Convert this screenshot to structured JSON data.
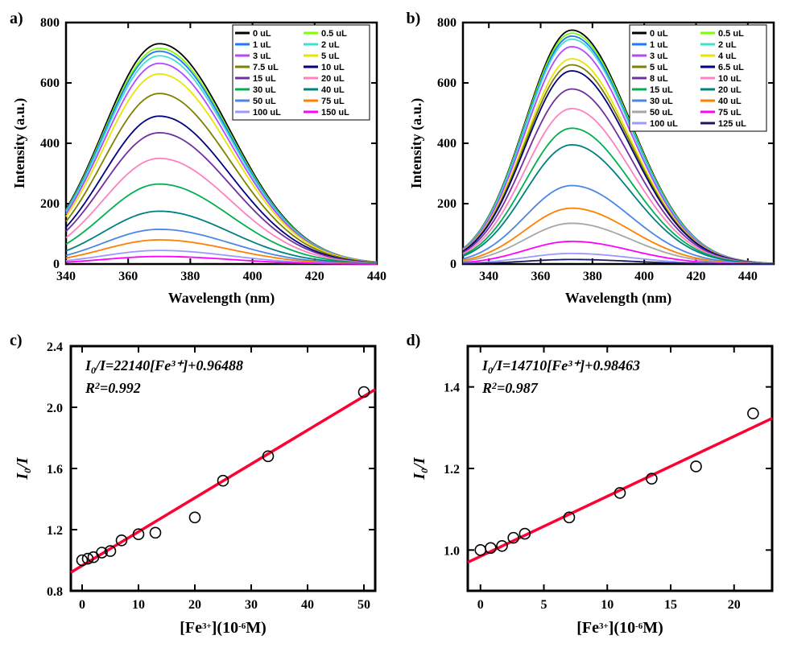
{
  "panel_a": {
    "label": "a)",
    "type": "line-spectra",
    "xlabel": "Wavelength (nm)",
    "ylabel": "Intensity (a.u.)",
    "xlim": [
      340,
      440
    ],
    "ylim": [
      0,
      800
    ],
    "xticks": [
      340,
      360,
      380,
      400,
      420,
      440
    ],
    "yticks": [
      0,
      200,
      400,
      600,
      800
    ],
    "label_fontsize": 18,
    "tick_fontsize": 16,
    "border_width": 2.5,
    "line_width": 1.8,
    "peak_x": 370,
    "series": [
      {
        "label": "0 uL",
        "color": "#000000",
        "peak": 730
      },
      {
        "label": "0.5 uL",
        "color": "#7fff00",
        "peak": 715
      },
      {
        "label": "1 uL",
        "color": "#1f77ff",
        "peak": 705
      },
      {
        "label": "2 uL",
        "color": "#40e0d0",
        "peak": 690
      },
      {
        "label": "3 uL",
        "color": "#b547ff",
        "peak": 665
      },
      {
        "label": "5 uL",
        "color": "#e6e600",
        "peak": 630
      },
      {
        "label": "7.5 uL",
        "color": "#808000",
        "peak": 565
      },
      {
        "label": "10 uL",
        "color": "#000080",
        "peak": 490
      },
      {
        "label": "15 uL",
        "color": "#7030a0",
        "peak": 435
      },
      {
        "label": "20 uL",
        "color": "#ff80c0",
        "peak": 350
      },
      {
        "label": "30 uL",
        "color": "#00b050",
        "peak": 265
      },
      {
        "label": "40 uL",
        "color": "#008080",
        "peak": 175
      },
      {
        "label": "50 uL",
        "color": "#4a86e8",
        "peak": 115
      },
      {
        "label": "75 uL",
        "color": "#ff8000",
        "peak": 80
      },
      {
        "label": "100 uL",
        "color": "#9999ff",
        "peak": 45
      },
      {
        "label": "150 uL",
        "color": "#ff00ff",
        "peak": 25
      }
    ]
  },
  "panel_b": {
    "label": "b)",
    "type": "line-spectra",
    "xlabel": "Wavelength (nm)",
    "ylabel": "Intensity (a.u.)",
    "xlim": [
      330,
      450
    ],
    "ylim": [
      0,
      800
    ],
    "xticks": [
      340,
      360,
      380,
      400,
      420,
      440
    ],
    "yticks": [
      0,
      200,
      400,
      600,
      800
    ],
    "label_fontsize": 18,
    "tick_fontsize": 16,
    "border_width": 2.5,
    "line_width": 1.8,
    "peak_x": 372,
    "series": [
      {
        "label": "0 uL",
        "color": "#000000",
        "peak": 775
      },
      {
        "label": "0.5 uL",
        "color": "#7fff00",
        "peak": 765
      },
      {
        "label": "1 uL",
        "color": "#1f77ff",
        "peak": 755
      },
      {
        "label": "2 uL",
        "color": "#40e0d0",
        "peak": 745
      },
      {
        "label": "3 uL",
        "color": "#b547ff",
        "peak": 720
      },
      {
        "label": "4 uL",
        "color": "#e6e600",
        "peak": 680
      },
      {
        "label": "5 uL",
        "color": "#808000",
        "peak": 660
      },
      {
        "label": "6.5 uL",
        "color": "#000080",
        "peak": 640
      },
      {
        "label": "8 uL",
        "color": "#7030a0",
        "peak": 580
      },
      {
        "label": "10 uL",
        "color": "#ff80c0",
        "peak": 515
      },
      {
        "label": "15 uL",
        "color": "#00b050",
        "peak": 450
      },
      {
        "label": "20 uL",
        "color": "#008080",
        "peak": 395
      },
      {
        "label": "30 uL",
        "color": "#4a86e8",
        "peak": 260
      },
      {
        "label": "40 uL",
        "color": "#ff8000",
        "peak": 185
      },
      {
        "label": "50 uL",
        "color": "#a6a6a6",
        "peak": 135
      },
      {
        "label": "75 uL",
        "color": "#ff00ff",
        "peak": 75
      },
      {
        "label": "100 uL",
        "color": "#9999ff",
        "peak": 35
      },
      {
        "label": "125 uL",
        "color": "#1a1a60",
        "peak": 15
      }
    ]
  },
  "panel_c": {
    "label": "c)",
    "type": "scatter-fit",
    "xlabel_html": "[Fe<tspan baseline-shift='5' font-size='11'>3+</tspan>](10<tspan baseline-shift='5' font-size='11'>-6</tspan>M)",
    "ylabel_html": "I<tspan baseline-shift='-4' font-size='12'>0</tspan>/I",
    "xlim": [
      -2,
      52
    ],
    "ylim": [
      0.8,
      2.4
    ],
    "xticks": [
      0,
      10,
      20,
      30,
      40,
      50
    ],
    "yticks": [
      0.8,
      1.2,
      1.6,
      2.0,
      2.4
    ],
    "label_fontsize": 20,
    "tick_fontsize": 16,
    "border_width": 3,
    "marker_size": 6.5,
    "marker_stroke": "#000000",
    "marker_fill": "none",
    "fit_color": "#ff0033",
    "fit_width": 3.5,
    "eqn1": "I₀/I=22140[Fe³⁺]+0.96488",
    "eqn2": "R²=0.992",
    "fit": {
      "slope": 0.02214,
      "intercept": 0.96488
    },
    "points": [
      {
        "x": 0,
        "y": 1.0
      },
      {
        "x": 1,
        "y": 1.01
      },
      {
        "x": 2,
        "y": 1.02
      },
      {
        "x": 3.5,
        "y": 1.05
      },
      {
        "x": 5,
        "y": 1.06
      },
      {
        "x": 7,
        "y": 1.13
      },
      {
        "x": 10,
        "y": 1.17
      },
      {
        "x": 13,
        "y": 1.18
      },
      {
        "x": 20,
        "y": 1.28
      },
      {
        "x": 25,
        "y": 1.52
      },
      {
        "x": 33,
        "y": 1.68
      },
      {
        "x": 50,
        "y": 2.1
      }
    ]
  },
  "panel_d": {
    "label": "d)",
    "type": "scatter-fit",
    "xlabel_html": "[Fe<tspan baseline-shift='5' font-size='11'>3+</tspan>](10<tspan baseline-shift='5' font-size='11'>-6</tspan>M)",
    "ylabel_html": "I<tspan baseline-shift='-4' font-size='12'>0</tspan>/I",
    "xlim": [
      -1,
      23
    ],
    "ylim": [
      0.9,
      1.5
    ],
    "xticks": [
      0,
      5,
      10,
      15,
      20
    ],
    "yticks": [
      1.0,
      1.2,
      1.4
    ],
    "label_fontsize": 20,
    "tick_fontsize": 16,
    "border_width": 3,
    "marker_size": 6.5,
    "marker_stroke": "#000000",
    "marker_fill": "none",
    "fit_color": "#ff0033",
    "fit_width": 3.5,
    "eqn1": "I₀/I=14710[Fe³⁺]+0.98463",
    "eqn2": "R²=0.987",
    "fit": {
      "slope": 0.01471,
      "intercept": 0.98463
    },
    "points": [
      {
        "x": 0,
        "y": 1.0
      },
      {
        "x": 0.8,
        "y": 1.005
      },
      {
        "x": 1.7,
        "y": 1.01
      },
      {
        "x": 2.6,
        "y": 1.03
      },
      {
        "x": 3.5,
        "y": 1.04
      },
      {
        "x": 7,
        "y": 1.08
      },
      {
        "x": 11,
        "y": 1.14
      },
      {
        "x": 13.5,
        "y": 1.175
      },
      {
        "x": 17,
        "y": 1.205
      },
      {
        "x": 21.5,
        "y": 1.335
      }
    ]
  }
}
